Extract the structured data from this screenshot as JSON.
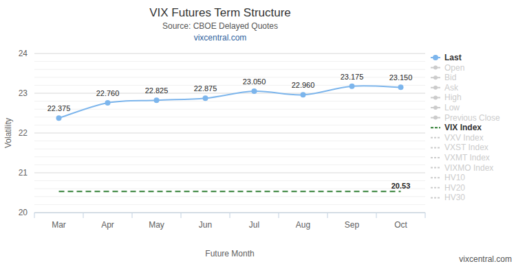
{
  "chart_data": {
    "type": "line",
    "title": "VIX Futures Term Structure",
    "subtitle": "Source: CBOE Delayed Quotes",
    "source_link": "vixcentral.com",
    "credit": "vixcentral.com",
    "x_label": "Future Month",
    "y_label": "Volatility",
    "categories": [
      "Mar",
      "Apr",
      "May",
      "Jun",
      "Jul",
      "Aug",
      "Sep",
      "Oct"
    ],
    "series": [
      {
        "name": "Last",
        "color": "#7cb5ec",
        "marker": "circle",
        "line_style": "solid",
        "values": [
          22.375,
          22.76,
          22.825,
          22.875,
          23.05,
          22.96,
          23.175,
          23.15
        ],
        "value_labels": [
          "22.375",
          "22.760",
          "22.825",
          "22.875",
          "23.050",
          "22.960",
          "23.175",
          "23.150"
        ]
      }
    ],
    "reference_line": {
      "name": "VIX Index",
      "value": 20.53,
      "color": "#2e7d32",
      "line_style": "dashed"
    },
    "inactive_legend": [
      "Open",
      "Bid",
      "Ask",
      "High",
      "Low",
      "Previous Close",
      "VXV Index",
      "VXST Index",
      "VXMT Index",
      "VIXMO Index",
      "HV10",
      "HV20",
      "HV30"
    ],
    "ylim": [
      20,
      24
    ],
    "yticks": [
      20,
      21,
      22,
      23,
      24
    ],
    "minor_yticks": [
      20.2,
      20.4,
      20.6,
      20.8,
      21.2,
      21.4,
      21.6,
      21.8,
      22.2,
      22.4,
      22.6,
      22.8,
      23.2,
      23.4,
      23.6,
      23.8
    ],
    "grid": true,
    "legend": "right",
    "data_labels": true
  }
}
